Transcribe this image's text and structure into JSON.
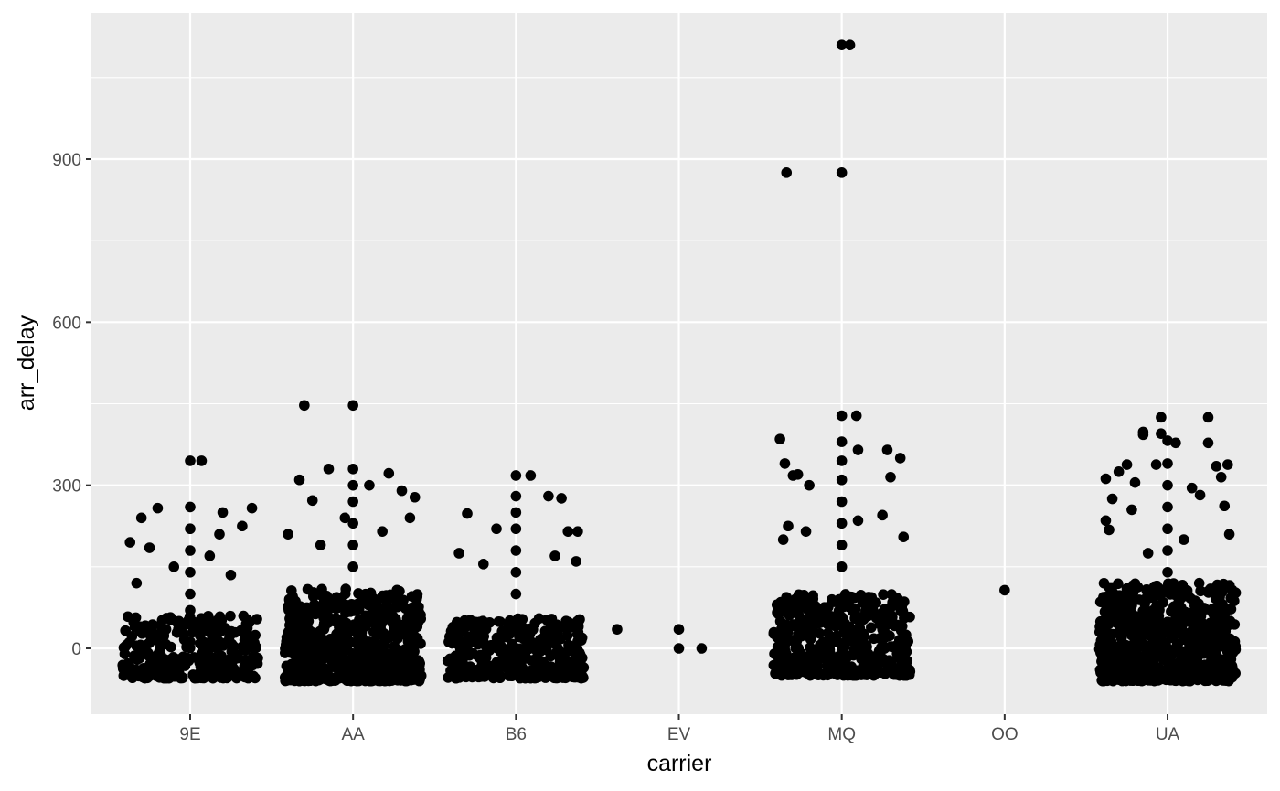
{
  "chart_data": {
    "type": "scatter",
    "subtype": "jitter",
    "title": "",
    "xlabel": "carrier",
    "ylabel": "arr_delay",
    "categories": [
      "9E",
      "AA",
      "B6",
      "EV",
      "MQ",
      "OO",
      "UA"
    ],
    "y_ticks": [
      0,
      300,
      600,
      900
    ],
    "ylim": [
      -120,
      1170
    ],
    "grid": true,
    "panel_color": "#ebebeb",
    "grid_color": "#ffffff",
    "point_color": "#000000",
    "dense_band": {
      "9E": {
        "count": 320,
        "low": -55,
        "high": 60
      },
      "AA": {
        "count": 700,
        "low": -60,
        "high": 110
      },
      "B6": {
        "count": 330,
        "low": -55,
        "high": 55
      },
      "EV": {
        "count": 0,
        "low": 0,
        "high": 0
      },
      "MQ": {
        "count": 430,
        "low": -50,
        "high": 100
      },
      "OO": {
        "count": 0,
        "low": 0,
        "high": 0
      },
      "UA": {
        "count": 700,
        "low": -60,
        "high": 120
      }
    },
    "points": [
      {
        "category": "9E",
        "x_offset": 0.0,
        "y": 345
      },
      {
        "category": "9E",
        "x_offset": 0.07,
        "y": 345
      },
      {
        "category": "9E",
        "x_offset": -0.3,
        "y": 240
      },
      {
        "category": "9E",
        "x_offset": -0.2,
        "y": 258
      },
      {
        "category": "9E",
        "x_offset": 0.2,
        "y": 250
      },
      {
        "category": "9E",
        "x_offset": 0.38,
        "y": 258
      },
      {
        "category": "9E",
        "x_offset": -0.37,
        "y": 195
      },
      {
        "category": "9E",
        "x_offset": -0.25,
        "y": 185
      },
      {
        "category": "9E",
        "x_offset": 0.32,
        "y": 225
      },
      {
        "category": "9E",
        "x_offset": 0.18,
        "y": 210
      },
      {
        "category": "9E",
        "x_offset": -0.1,
        "y": 150
      },
      {
        "category": "9E",
        "x_offset": 0.12,
        "y": 170
      },
      {
        "category": "9E",
        "x_offset": 0.25,
        "y": 135
      },
      {
        "category": "9E",
        "x_offset": -0.33,
        "y": 120
      },
      {
        "category": "9E",
        "x_offset": 0.0,
        "y": 260
      },
      {
        "category": "9E",
        "x_offset": 0.0,
        "y": 220
      },
      {
        "category": "9E",
        "x_offset": 0.0,
        "y": 180
      },
      {
        "category": "9E",
        "x_offset": 0.0,
        "y": 140
      },
      {
        "category": "9E",
        "x_offset": 0.0,
        "y": 100
      },
      {
        "category": "9E",
        "x_offset": 0.0,
        "y": 70
      },
      {
        "category": "AA",
        "x_offset": -0.3,
        "y": 447
      },
      {
        "category": "AA",
        "x_offset": 0.0,
        "y": 447
      },
      {
        "category": "AA",
        "x_offset": -0.33,
        "y": 310
      },
      {
        "category": "AA",
        "x_offset": -0.25,
        "y": 272
      },
      {
        "category": "AA",
        "x_offset": -0.15,
        "y": 330
      },
      {
        "category": "AA",
        "x_offset": 0.22,
        "y": 322
      },
      {
        "category": "AA",
        "x_offset": 0.3,
        "y": 290
      },
      {
        "category": "AA",
        "x_offset": 0.38,
        "y": 278
      },
      {
        "category": "AA",
        "x_offset": 0.1,
        "y": 300
      },
      {
        "category": "AA",
        "x_offset": -0.4,
        "y": 210
      },
      {
        "category": "AA",
        "x_offset": 0.35,
        "y": 240
      },
      {
        "category": "AA",
        "x_offset": -0.05,
        "y": 240
      },
      {
        "category": "AA",
        "x_offset": 0.18,
        "y": 215
      },
      {
        "category": "AA",
        "x_offset": -0.2,
        "y": 190
      },
      {
        "category": "AA",
        "x_offset": 0.0,
        "y": 330
      },
      {
        "category": "AA",
        "x_offset": 0.0,
        "y": 300
      },
      {
        "category": "AA",
        "x_offset": 0.0,
        "y": 270
      },
      {
        "category": "AA",
        "x_offset": 0.0,
        "y": 230
      },
      {
        "category": "AA",
        "x_offset": 0.0,
        "y": 190
      },
      {
        "category": "AA",
        "x_offset": 0.0,
        "y": 150
      },
      {
        "category": "B6",
        "x_offset": 0.0,
        "y": 318
      },
      {
        "category": "B6",
        "x_offset": 0.09,
        "y": 318
      },
      {
        "category": "B6",
        "x_offset": 0.2,
        "y": 280
      },
      {
        "category": "B6",
        "x_offset": 0.28,
        "y": 276
      },
      {
        "category": "B6",
        "x_offset": -0.3,
        "y": 248
      },
      {
        "category": "B6",
        "x_offset": -0.12,
        "y": 220
      },
      {
        "category": "B6",
        "x_offset": 0.32,
        "y": 215
      },
      {
        "category": "B6",
        "x_offset": 0.38,
        "y": 215
      },
      {
        "category": "B6",
        "x_offset": 0.24,
        "y": 170
      },
      {
        "category": "B6",
        "x_offset": -0.35,
        "y": 175
      },
      {
        "category": "B6",
        "x_offset": 0.37,
        "y": 160
      },
      {
        "category": "B6",
        "x_offset": -0.2,
        "y": 155
      },
      {
        "category": "B6",
        "x_offset": 0.0,
        "y": 280
      },
      {
        "category": "B6",
        "x_offset": 0.0,
        "y": 250
      },
      {
        "category": "B6",
        "x_offset": 0.0,
        "y": 220
      },
      {
        "category": "B6",
        "x_offset": 0.0,
        "y": 180
      },
      {
        "category": "B6",
        "x_offset": 0.0,
        "y": 140
      },
      {
        "category": "B6",
        "x_offset": 0.0,
        "y": 100
      },
      {
        "category": "EV",
        "x_offset": -0.38,
        "y": 35
      },
      {
        "category": "EV",
        "x_offset": 0.0,
        "y": 35
      },
      {
        "category": "EV",
        "x_offset": 0.0,
        "y": 0
      },
      {
        "category": "EV",
        "x_offset": 0.14,
        "y": 0
      },
      {
        "category": "MQ",
        "x_offset": 0.0,
        "y": 1110
      },
      {
        "category": "MQ",
        "x_offset": 0.05,
        "y": 1110
      },
      {
        "category": "MQ",
        "x_offset": -0.34,
        "y": 875
      },
      {
        "category": "MQ",
        "x_offset": 0.0,
        "y": 875
      },
      {
        "category": "MQ",
        "x_offset": 0.0,
        "y": 428
      },
      {
        "category": "MQ",
        "x_offset": 0.09,
        "y": 428
      },
      {
        "category": "MQ",
        "x_offset": -0.38,
        "y": 385
      },
      {
        "category": "MQ",
        "x_offset": -0.35,
        "y": 340
      },
      {
        "category": "MQ",
        "x_offset": -0.3,
        "y": 318
      },
      {
        "category": "MQ",
        "x_offset": -0.27,
        "y": 320
      },
      {
        "category": "MQ",
        "x_offset": 0.28,
        "y": 365
      },
      {
        "category": "MQ",
        "x_offset": 0.36,
        "y": 350
      },
      {
        "category": "MQ",
        "x_offset": 0.3,
        "y": 315
      },
      {
        "category": "MQ",
        "x_offset": 0.1,
        "y": 365
      },
      {
        "category": "MQ",
        "x_offset": -0.2,
        "y": 300
      },
      {
        "category": "MQ",
        "x_offset": 0.25,
        "y": 245
      },
      {
        "category": "MQ",
        "x_offset": 0.1,
        "y": 235
      },
      {
        "category": "MQ",
        "x_offset": -0.33,
        "y": 225
      },
      {
        "category": "MQ",
        "x_offset": -0.22,
        "y": 215
      },
      {
        "category": "MQ",
        "x_offset": 0.38,
        "y": 205
      },
      {
        "category": "MQ",
        "x_offset": -0.36,
        "y": 200
      },
      {
        "category": "MQ",
        "x_offset": 0.0,
        "y": 380
      },
      {
        "category": "MQ",
        "x_offset": 0.0,
        "y": 345
      },
      {
        "category": "MQ",
        "x_offset": 0.0,
        "y": 310
      },
      {
        "category": "MQ",
        "x_offset": 0.0,
        "y": 270
      },
      {
        "category": "MQ",
        "x_offset": 0.0,
        "y": 230
      },
      {
        "category": "MQ",
        "x_offset": 0.0,
        "y": 190
      },
      {
        "category": "MQ",
        "x_offset": 0.0,
        "y": 150
      },
      {
        "category": "OO",
        "x_offset": 0.0,
        "y": 107
      },
      {
        "category": "UA",
        "x_offset": -0.04,
        "y": 425
      },
      {
        "category": "UA",
        "x_offset": 0.25,
        "y": 425
      },
      {
        "category": "UA",
        "x_offset": -0.15,
        "y": 398
      },
      {
        "category": "UA",
        "x_offset": -0.15,
        "y": 393
      },
      {
        "category": "UA",
        "x_offset": -0.04,
        "y": 395
      },
      {
        "category": "UA",
        "x_offset": 0.0,
        "y": 382
      },
      {
        "category": "UA",
        "x_offset": 0.05,
        "y": 378
      },
      {
        "category": "UA",
        "x_offset": 0.25,
        "y": 378
      },
      {
        "category": "UA",
        "x_offset": -0.25,
        "y": 338
      },
      {
        "category": "UA",
        "x_offset": -0.07,
        "y": 338
      },
      {
        "category": "UA",
        "x_offset": -0.38,
        "y": 312
      },
      {
        "category": "UA",
        "x_offset": -0.3,
        "y": 325
      },
      {
        "category": "UA",
        "x_offset": 0.3,
        "y": 335
      },
      {
        "category": "UA",
        "x_offset": 0.37,
        "y": 338
      },
      {
        "category": "UA",
        "x_offset": 0.33,
        "y": 315
      },
      {
        "category": "UA",
        "x_offset": -0.2,
        "y": 305
      },
      {
        "category": "UA",
        "x_offset": 0.15,
        "y": 295
      },
      {
        "category": "UA",
        "x_offset": -0.34,
        "y": 275
      },
      {
        "category": "UA",
        "x_offset": 0.2,
        "y": 282
      },
      {
        "category": "UA",
        "x_offset": 0.35,
        "y": 262
      },
      {
        "category": "UA",
        "x_offset": -0.22,
        "y": 255
      },
      {
        "category": "UA",
        "x_offset": -0.38,
        "y": 235
      },
      {
        "category": "UA",
        "x_offset": 0.38,
        "y": 210
      },
      {
        "category": "UA",
        "x_offset": -0.36,
        "y": 218
      },
      {
        "category": "UA",
        "x_offset": -0.12,
        "y": 175
      },
      {
        "category": "UA",
        "x_offset": 0.1,
        "y": 200
      },
      {
        "category": "UA",
        "x_offset": 0.0,
        "y": 340
      },
      {
        "category": "UA",
        "x_offset": 0.0,
        "y": 300
      },
      {
        "category": "UA",
        "x_offset": 0.0,
        "y": 260
      },
      {
        "category": "UA",
        "x_offset": 0.0,
        "y": 220
      },
      {
        "category": "UA",
        "x_offset": 0.0,
        "y": 180
      },
      {
        "category": "UA",
        "x_offset": 0.0,
        "y": 140
      }
    ]
  }
}
